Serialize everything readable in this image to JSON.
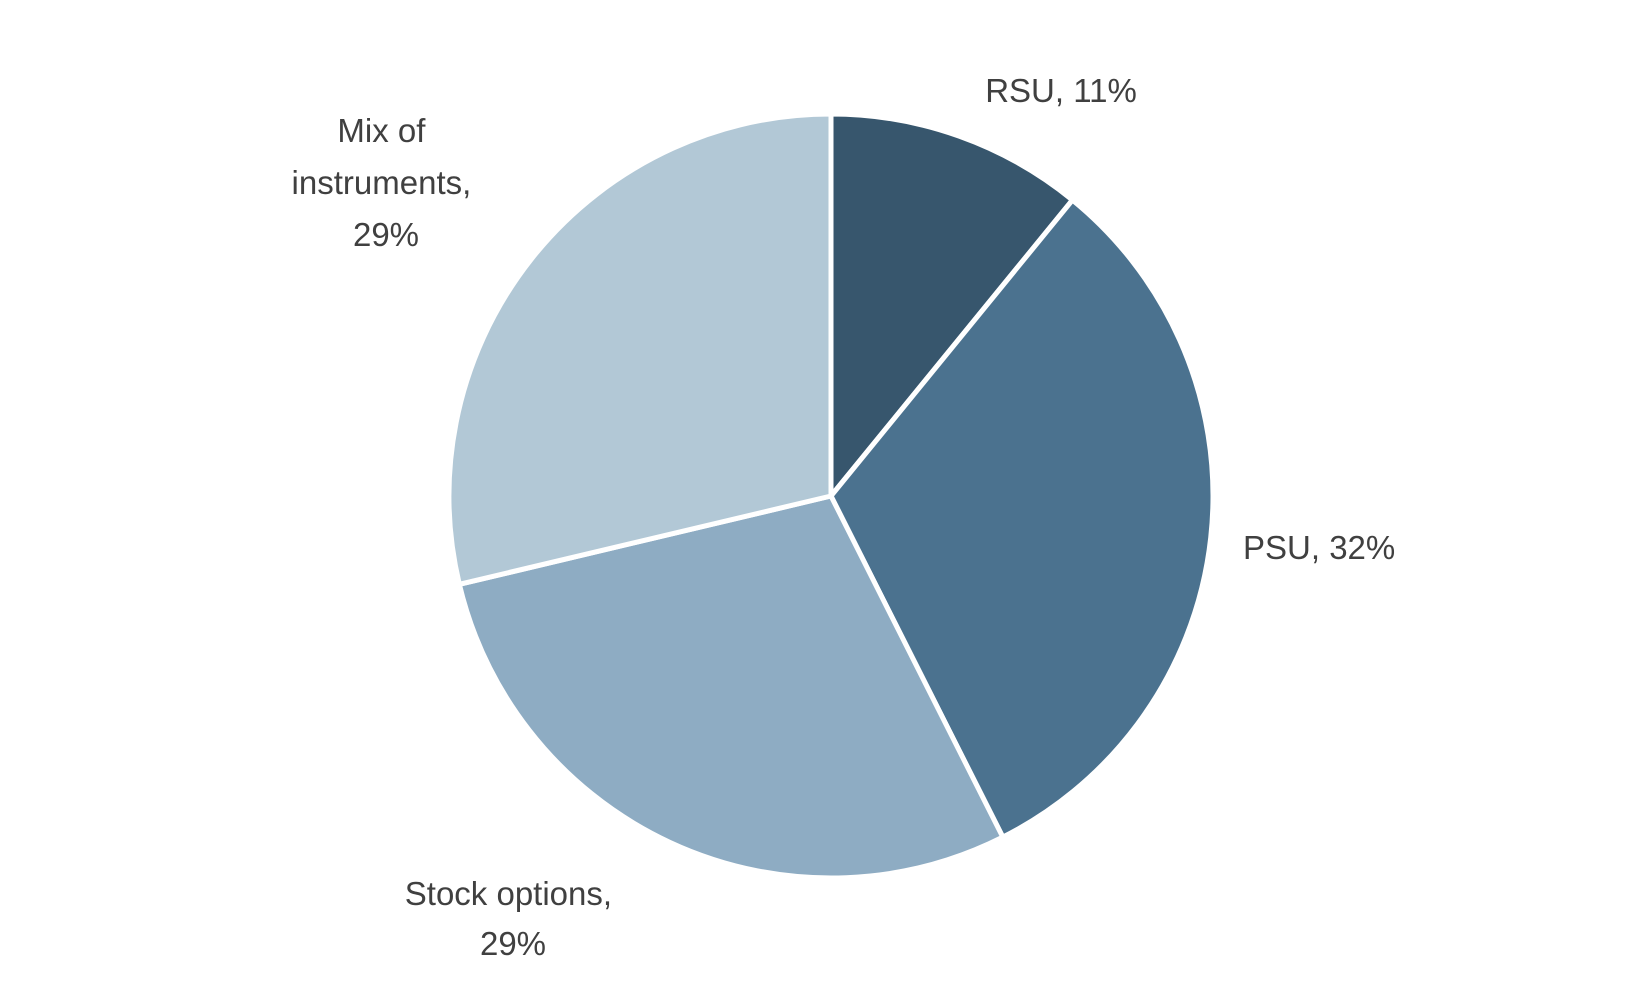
{
  "chart_data": {
    "type": "pie",
    "title": "",
    "start": "top",
    "direction": "clockwise",
    "slices": [
      {
        "name": "RSU",
        "value": 11,
        "label_lines": [
          "RSU, 11%"
        ],
        "color": "#37566d"
      },
      {
        "name": "PSU",
        "value": 32,
        "label_lines": [
          "PSU, 32%"
        ],
        "color": "#4b728f"
      },
      {
        "name": "Stock options",
        "value": 29,
        "label_lines": [
          "Stock options,",
          "29%"
        ],
        "color": "#8eacc3"
      },
      {
        "name": "Mix of instruments",
        "value": 29,
        "label_lines": [
          "Mix of",
          "instruments,",
          "29%"
        ],
        "color": "#b2c8d6"
      }
    ]
  }
}
